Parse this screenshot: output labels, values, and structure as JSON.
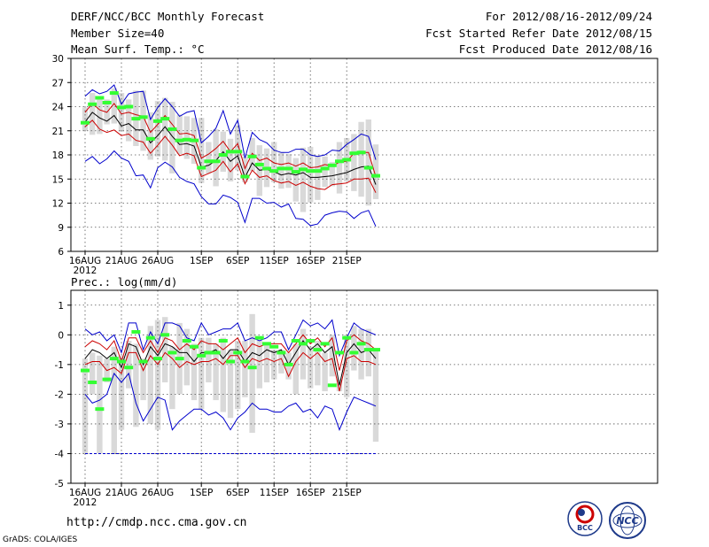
{
  "header": {
    "title": "DERF/NCC/BCC Monthly Forecast",
    "member_size": "Member Size=40",
    "variable": "Mean Surf. Temp.: °C",
    "period": "For 2012/08/16-2012/09/24",
    "started": "Fcst Started Refer Date 2012/08/15",
    "produced": "Fcst Produced Date 2012/08/16"
  },
  "footer": {
    "url": "http://cmdp.ncc.cma.gov.cn",
    "credit": "GrADS: COLA/IGES",
    "logo_bcc": "BCC",
    "logo_ncc": "NCC"
  },
  "colors": {
    "max_min": "#0000cc",
    "spread": "#cc0000",
    "mean": "#000000",
    "observed": "#33ff33",
    "box": "#d9d9d9",
    "grid": "#555555"
  },
  "chart_data": [
    {
      "type": "box-line",
      "title": "Mean Surf. Temp.: °C",
      "ylim": [
        6,
        30
      ],
      "yticks": [
        "30",
        "27",
        "24",
        "21",
        "18",
        "15",
        "12",
        "9",
        "6"
      ],
      "ytick_values": [
        30,
        27,
        24,
        21,
        18,
        15,
        12,
        9,
        6
      ],
      "xtick_labels": [
        "16AUG",
        "21AUG",
        "26AUG",
        "1SEP",
        "6SEP",
        "11SEP",
        "16SEP",
        "21SEP"
      ],
      "xtick_days": [
        0,
        5,
        10,
        16,
        21,
        26,
        31,
        36
      ],
      "year_label": "2012",
      "series": [
        {
          "name": "max",
          "values": [
            25.3,
            26.1,
            25.6,
            25.9,
            26.7,
            24.3,
            25.6,
            25.8,
            25.9,
            22.4,
            23.9,
            25.0,
            24.0,
            22.8,
            23.3,
            23.5,
            19.5,
            20.3,
            21.3,
            23.5,
            20.6,
            22.3,
            17.6,
            20.8,
            19.9,
            19.5,
            18.6,
            18.3,
            18.3,
            18.7,
            18.7,
            18.0,
            17.8,
            18.0,
            18.6,
            18.5,
            19.3,
            19.9,
            20.6,
            20.3,
            17.4
          ]
        },
        {
          "name": "upper",
          "values": [
            23.3,
            24.4,
            23.6,
            23.3,
            24.4,
            23.1,
            23.3,
            23.0,
            22.8,
            20.8,
            21.8,
            22.9,
            21.8,
            20.6,
            20.7,
            20.4,
            17.6,
            18.1,
            18.8,
            19.7,
            18.4,
            19.4,
            16.3,
            18.2,
            17.3,
            17.6,
            17.0,
            16.8,
            17.0,
            16.6,
            17.0,
            16.4,
            16.5,
            16.8,
            16.6,
            17.1,
            17.2,
            18.2,
            18.3,
            18.3,
            15.3
          ]
        },
        {
          "name": "mean",
          "values": [
            22.1,
            23.3,
            22.6,
            22.2,
            22.9,
            21.6,
            21.9,
            21.1,
            21.1,
            19.5,
            20.4,
            21.5,
            20.3,
            19.3,
            19.4,
            19.1,
            16.5,
            16.7,
            17.3,
            18.4,
            17.2,
            17.9,
            15.2,
            17.0,
            16.1,
            16.2,
            15.9,
            15.5,
            15.7,
            15.5,
            15.8,
            15.2,
            15.2,
            15.3,
            15.4,
            15.6,
            15.8,
            16.2,
            16.5,
            16.6,
            14.3
          ]
        },
        {
          "name": "lower",
          "values": [
            21.5,
            22.3,
            21.2,
            20.8,
            21.1,
            20.4,
            20.6,
            19.8,
            19.6,
            18.2,
            19.2,
            20.3,
            19.2,
            17.9,
            18.2,
            17.9,
            15.3,
            15.7,
            16.1,
            17.2,
            15.9,
            16.9,
            14.4,
            16.1,
            15.2,
            15.4,
            14.8,
            14.5,
            14.7,
            14.2,
            14.6,
            14.1,
            13.8,
            13.7,
            14.3,
            14.4,
            14.5,
            15.0,
            15.0,
            15.1,
            13.3
          ]
        },
        {
          "name": "min",
          "values": [
            17.2,
            17.8,
            16.9,
            17.5,
            18.5,
            17.6,
            17.2,
            15.4,
            15.5,
            13.9,
            16.4,
            17.1,
            16.5,
            15.2,
            14.7,
            14.4,
            12.8,
            11.9,
            11.9,
            13.0,
            12.7,
            12.1,
            9.6,
            12.6,
            12.6,
            12.0,
            12.1,
            11.5,
            11.9,
            10.1,
            10.0,
            9.2,
            9.4,
            10.5,
            10.8,
            11.0,
            10.9,
            10.1,
            10.8,
            11.1,
            9.1
          ]
        },
        {
          "name": "box_high",
          "values": [
            23.9,
            25.7,
            25.0,
            24.9,
            26.3,
            25.7,
            24.9,
            26.0,
            26.0,
            23.3,
            24.7,
            25.1,
            24.6,
            23.0,
            22.8,
            22.6,
            22.6,
            19.6,
            21.2,
            20.9,
            20.0,
            21.7,
            17.8,
            20.1,
            19.2,
            18.8,
            19.6,
            18.3,
            18.1,
            17.6,
            18.9,
            19.0,
            17.8,
            17.8,
            17.1,
            19.6,
            20.1,
            20.6,
            22.1,
            22.4,
            19.3
          ]
        },
        {
          "name": "box_low",
          "values": [
            21.0,
            20.5,
            20.6,
            21.8,
            21.9,
            20.9,
            19.7,
            19.1,
            18.5,
            17.4,
            17.8,
            17.3,
            15.7,
            18.1,
            17.5,
            16.9,
            14.5,
            15.7,
            14.1,
            15.9,
            14.7,
            16.1,
            14.6,
            16.0,
            12.9,
            14.0,
            14.6,
            13.8,
            13.9,
            12.2,
            10.9,
            12.1,
            12.4,
            14.0,
            14.1,
            13.2,
            14.7,
            13.5,
            12.8,
            11.7,
            12.5
          ]
        },
        {
          "name": "observed",
          "values": [
            22.0,
            24.3,
            25.1,
            24.5,
            25.7,
            23.9,
            24.0,
            22.5,
            22.7,
            20.0,
            22.2,
            22.5,
            21.2,
            19.8,
            19.9,
            19.8,
            16.4,
            17.2,
            17.2,
            18.0,
            18.4,
            18.4,
            15.3,
            17.8,
            16.8,
            16.3,
            16.0,
            16.3,
            16.3,
            15.9,
            16.2,
            16.0,
            16.0,
            16.3,
            16.7,
            17.2,
            17.4,
            18.2,
            18.3,
            16.4,
            15.4
          ]
        }
      ]
    },
    {
      "type": "box-line",
      "title": "Prec.: log(mm/d)",
      "ylim": [
        -5,
        1.5
      ],
      "yticks": [
        "1",
        "0",
        "-1",
        "-2",
        "-3",
        "-4",
        "-5"
      ],
      "ytick_values": [
        1,
        0,
        -1,
        -2,
        -3,
        -4,
        -5
      ],
      "xtick_labels": [
        "16AUG",
        "21AUG",
        "26AUG",
        "1SEP",
        "6SEP",
        "11SEP",
        "16SEP",
        "21SEP"
      ],
      "xtick_days": [
        0,
        5,
        10,
        16,
        21,
        26,
        31,
        36
      ],
      "year_label": "2012",
      "series": [
        {
          "name": "max",
          "values": [
            0.2,
            0.0,
            0.1,
            -0.2,
            0.0,
            -0.6,
            0.4,
            0.4,
            -0.5,
            0.1,
            -0.3,
            0.4,
            0.4,
            0.3,
            -0.1,
            -0.2,
            0.4,
            0.0,
            0.1,
            0.2,
            0.2,
            0.4,
            -0.2,
            -0.1,
            -0.2,
            -0.1,
            0.1,
            0.1,
            -0.5,
            0.0,
            0.5,
            0.3,
            0.4,
            0.2,
            0.5,
            -0.7,
            -0.1,
            0.4,
            0.2,
            0.1,
            0.0
          ]
        },
        {
          "name": "upper",
          "values": [
            -0.4,
            -0.2,
            -0.3,
            -0.5,
            -0.2,
            -0.9,
            -0.1,
            -0.1,
            -0.6,
            -0.2,
            -0.6,
            -0.1,
            -0.2,
            -0.5,
            -0.3,
            -0.5,
            -0.2,
            -0.3,
            -0.3,
            -0.5,
            -0.3,
            -0.1,
            -0.6,
            -0.3,
            -0.4,
            -0.3,
            -0.3,
            -0.3,
            -0.6,
            -0.3,
            0.0,
            -0.3,
            -0.1,
            -0.4,
            -0.1,
            -1.2,
            -0.2,
            0.0,
            -0.2,
            -0.3,
            -0.5
          ]
        },
        {
          "name": "mean",
          "values": [
            -0.8,
            -0.5,
            -0.6,
            -0.8,
            -0.6,
            -1.1,
            -0.3,
            -0.4,
            -1.0,
            -0.4,
            -0.7,
            -0.3,
            -0.4,
            -0.6,
            -0.6,
            -0.9,
            -0.6,
            -0.6,
            -0.5,
            -0.8,
            -0.5,
            -0.5,
            -0.9,
            -0.6,
            -0.7,
            -0.5,
            -0.6,
            -0.5,
            -1.0,
            -0.6,
            -0.2,
            -0.5,
            -0.3,
            -0.6,
            -0.4,
            -1.7,
            -0.6,
            -0.3,
            -0.6,
            -0.5,
            -0.8
          ]
        },
        {
          "name": "lower",
          "values": [
            -1.0,
            -0.9,
            -0.9,
            -1.2,
            -1.1,
            -1.3,
            -0.6,
            -0.6,
            -1.2,
            -0.7,
            -1.0,
            -0.6,
            -0.8,
            -1.1,
            -0.9,
            -1.0,
            -0.9,
            -0.9,
            -0.8,
            -1.0,
            -0.7,
            -0.7,
            -1.1,
            -0.8,
            -0.9,
            -0.8,
            -0.9,
            -0.8,
            -1.4,
            -0.9,
            -0.6,
            -0.8,
            -0.6,
            -0.9,
            -0.8,
            -1.9,
            -0.8,
            -0.7,
            -0.9,
            -0.9,
            -1.0
          ]
        },
        {
          "name": "min",
          "values": [
            -2.0,
            -2.3,
            -2.2,
            -2.0,
            -1.3,
            -1.6,
            -1.3,
            -2.3,
            -2.9,
            -2.5,
            -2.1,
            -2.2,
            -3.2,
            -2.9,
            -2.7,
            -2.5,
            -2.5,
            -2.7,
            -2.6,
            -2.8,
            -3.2,
            -2.8,
            -2.6,
            -2.3,
            -2.5,
            -2.5,
            -2.6,
            -2.6,
            -2.4,
            -2.3,
            -2.6,
            -2.5,
            -2.8,
            -2.4,
            -2.5,
            -3.2,
            -2.6,
            -2.1,
            -2.2,
            -2.3,
            -2.4
          ]
        },
        {
          "name": "box_high",
          "values": [
            -0.8,
            -0.6,
            -0.7,
            -0.8,
            -0.4,
            -0.7,
            -0.2,
            -0.3,
            -0.8,
            0.3,
            0.5,
            0.6,
            -0.4,
            0.4,
            0.2,
            -0.3,
            -0.1,
            -0.1,
            -0.3,
            -0.1,
            -0.5,
            -0.2,
            -0.2,
            0.7,
            -0.2,
            -0.3,
            -0.5,
            -0.5,
            -0.6,
            -0.3,
            0.2,
            -0.4,
            -0.2,
            -0.6,
            0.0,
            -1.5,
            0.0,
            0.3,
            0.2,
            0.2,
            -0.5
          ]
        },
        {
          "name": "box_low",
          "values": [
            -4.0,
            -2.0,
            -4.0,
            -1.6,
            -4.0,
            -3.2,
            -1.8,
            -3.1,
            -2.2,
            -3.0,
            -3.2,
            -1.6,
            -2.5,
            -2.0,
            -1.7,
            -2.2,
            -2.5,
            -1.6,
            -2.2,
            -2.6,
            -2.8,
            -2.5,
            -2.1,
            -3.3,
            -1.8,
            -1.6,
            -1.5,
            -1.3,
            -1.5,
            -2.0,
            -1.5,
            -1.8,
            -1.7,
            -1.9,
            -1.4,
            -1.9,
            -2.1,
            -1.2,
            -1.5,
            -1.4,
            -3.6
          ]
        },
        {
          "name": "observed",
          "values": [
            -1.2,
            -1.6,
            -2.5,
            -1.5,
            -0.8,
            -0.9,
            -1.1,
            0.1,
            -0.9,
            -0.1,
            -0.8,
            0.0,
            -0.6,
            -0.8,
            -0.2,
            -0.4,
            -0.7,
            -0.6,
            -0.6,
            -0.2,
            -0.9,
            -0.6,
            -0.9,
            -1.1,
            -0.1,
            -0.3,
            -0.4,
            -0.6,
            -1.0,
            -0.2,
            -0.3,
            -0.2,
            -0.5,
            -0.3,
            -1.7,
            -0.6,
            -0.1,
            -0.6,
            -0.3,
            -0.5,
            -0.5
          ]
        },
        {
          "name": "floor",
          "values": [
            -4.0,
            -4.0,
            -4.0,
            -4.0,
            -4.0,
            -4.0,
            -4.0,
            -4.0,
            -4.0,
            -4.0,
            -4.0,
            -4.0,
            -4.0,
            -4.0,
            -4.0,
            -4.0,
            -4.0,
            -4.0,
            -4.0,
            -4.0,
            -4.0,
            -4.0,
            -4.0,
            -4.0,
            -4.0,
            -4.0,
            -4.0,
            -4.0,
            -4.0,
            -4.0,
            -4.0,
            -4.0,
            -4.0,
            -4.0,
            -4.0,
            -4.0,
            -4.0,
            -4.0,
            -4.0,
            -4.0,
            -4.0
          ]
        }
      ]
    }
  ]
}
